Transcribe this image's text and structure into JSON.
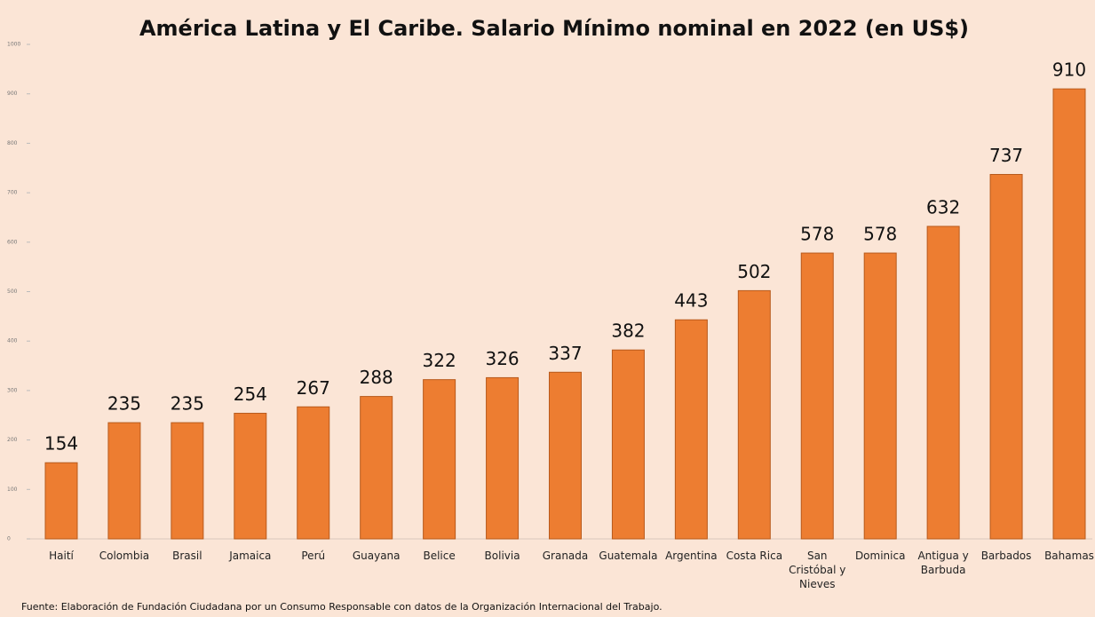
{
  "chart_data": {
    "type": "bar",
    "title": "América Latina y El Caribe. Salario Mínimo nominal en 2022 (en US$)",
    "categories": [
      "Haití",
      "Colombia",
      "Brasil",
      "Jamaica",
      "Perú",
      "Guayana",
      "Belice",
      "Bolivia",
      "Granada",
      "Guatemala",
      "Argentina",
      "Costa Rica",
      "San Cristóbal y Nieves",
      "Dominica",
      "Antigua y Barbuda",
      "Barbados",
      "Bahamas"
    ],
    "values": [
      154,
      235,
      235,
      254,
      267,
      288,
      322,
      326,
      337,
      382,
      443,
      502,
      578,
      578,
      632,
      737,
      910
    ],
    "color": "#ed7d31",
    "ylim": [
      0,
      1000
    ],
    "yticks": [
      0,
      100,
      200,
      300,
      400,
      500,
      600,
      700,
      800,
      900,
      1000
    ],
    "grid": false,
    "source": "Fuente: Elaboración de Fundación Ciudadana por un Consumo Responsable con datos de la Organización Internacional del Trabajo."
  }
}
